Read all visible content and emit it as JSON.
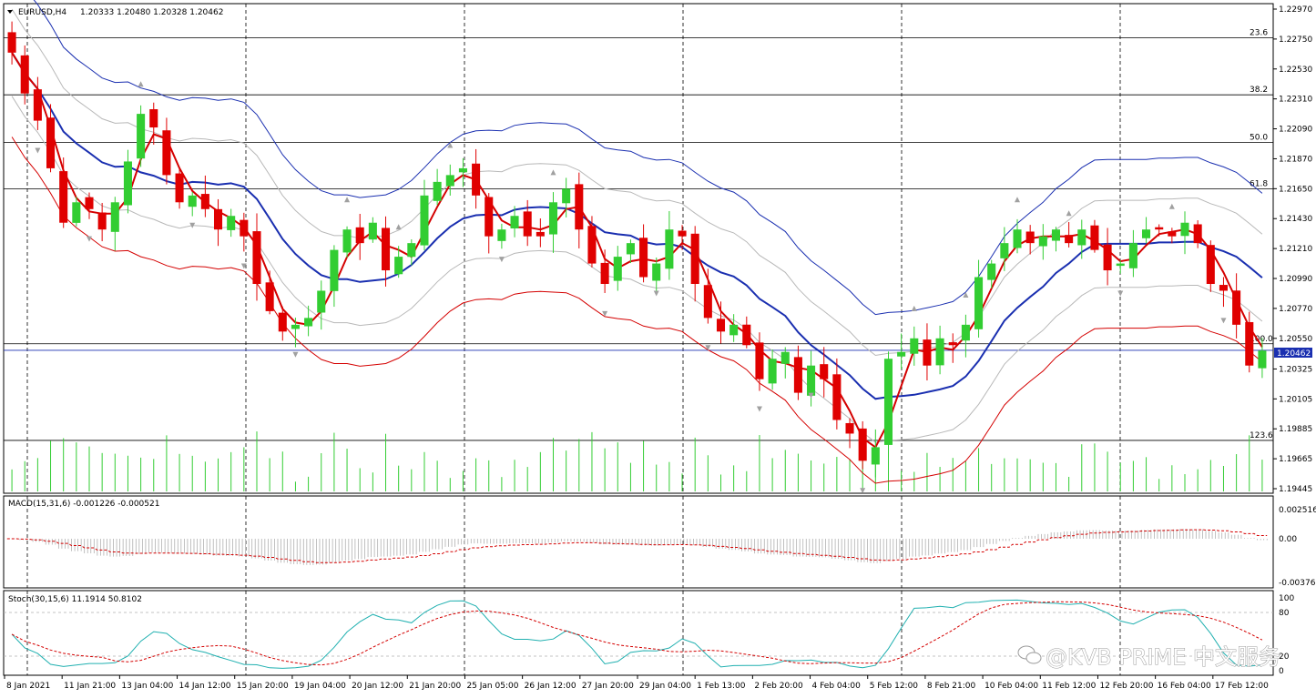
{
  "header": {
    "symbol": "EURUSD,H4",
    "ohlc": "1.20333 1.20480 1.20328 1.20462"
  },
  "macd_header": "MACD(15,31,6) -0.001226 -0.000521",
  "stoch_header": "Stoch(30,15,6) 11.1914 50.8102",
  "current_price": "1.20462",
  "watermark": "@KVB PRIME 中文服务",
  "colors": {
    "bull": "#32cd32",
    "bear": "#e00000",
    "ma_fast": "#d40000",
    "ma_mid": "#1a2fb0",
    "band_outer_up": "#1a2fb0",
    "band_outer_low": "#d40000",
    "band_inner": "#b8b8b8",
    "volume": "#32cd32",
    "fib": "#000000"
  },
  "chart_data": [
    {
      "type": "candlestick",
      "title": "EURUSD,H4",
      "ylim": [
        1.19445,
        1.2297
      ],
      "y_ticks": [
        "1.22970",
        "1.22750",
        "1.22530",
        "1.22310",
        "1.22090",
        "1.21870",
        "1.21650",
        "1.21430",
        "1.21210",
        "1.20990",
        "1.20770",
        "1.20550",
        "1.20325",
        "1.20105",
        "1.19885",
        "1.19665",
        "1.19445"
      ],
      "x_ticks": [
        "8 Jan 2021",
        "11 Jan 21:00",
        "13 Jan 04:00",
        "14 Jan 12:00",
        "15 Jan 20:00",
        "19 Jan 04:00",
        "20 Jan 12:00",
        "21 Jan 20:00",
        "25 Jan 05:00",
        "26 Jan 12:00",
        "27 Jan 20:00",
        "29 Jan 04:00",
        "1 Feb 13:00",
        "2 Feb 20:00",
        "4 Feb 04:00",
        "5 Feb 12:00",
        "8 Feb 21:00",
        "10 Feb 04:00",
        "11 Feb 12:00",
        "12 Feb 20:00",
        "16 Feb 04:00",
        "17 Feb 12:00"
      ],
      "fib_levels": [
        {
          "label": "23.6",
          "price": 1.2276
        },
        {
          "label": "38.2",
          "price": 1.2234
        },
        {
          "label": "50.0",
          "price": 1.2199
        },
        {
          "label": "61.8",
          "price": 1.2165
        },
        {
          "label": "100.0",
          "price": 1.2051
        },
        {
          "label": "123.6",
          "price": 1.198
        }
      ],
      "last_price": 1.20462,
      "close_path": [
        1.2265,
        1.2235,
        1.2215,
        1.218,
        1.214,
        1.2155,
        1.215,
        1.2135,
        1.2155,
        1.2185,
        1.222,
        1.221,
        1.2175,
        1.2155,
        1.216,
        1.215,
        1.2135,
        1.2145,
        1.213,
        1.2095,
        1.2075,
        1.206,
        1.2065,
        1.207,
        1.209,
        1.212,
        1.2135,
        1.2125,
        1.214,
        1.2105,
        1.2115,
        1.2125,
        1.216,
        1.217,
        1.2175,
        1.218,
        1.216,
        1.213,
        1.2135,
        1.2145,
        1.213,
        1.213,
        1.2155,
        1.2165,
        1.2135,
        1.211,
        1.2095,
        1.2115,
        1.2125,
        1.21,
        1.211,
        1.2135,
        1.213,
        1.2095,
        1.207,
        1.206,
        1.2065,
        1.205,
        1.2025,
        1.204,
        1.2045,
        1.2015,
        1.2035,
        1.2025,
        1.1995,
        1.1985,
        1.1965,
        1.1975,
        1.204,
        1.2045,
        1.2055,
        1.2035,
        1.2055,
        1.205,
        1.2065,
        1.21,
        1.211,
        1.2125,
        1.2135,
        1.2125,
        1.213,
        1.2135,
        1.2125,
        1.2135,
        1.212,
        1.2105,
        1.211,
        1.2125,
        1.2135,
        1.2135,
        1.213,
        1.214,
        1.2125,
        1.2095,
        1.209,
        1.2065,
        1.2035,
        1.2046
      ]
    },
    {
      "type": "bar",
      "title": "MACD(15,31,6)",
      "ylim": [
        -0.003769,
        0.002516
      ],
      "y_ticks": [
        "0.002516",
        "0.00",
        "-0.003769"
      ],
      "main": -0.001226,
      "signal": -0.000521
    },
    {
      "type": "line",
      "title": "Stoch(30,15,6)",
      "ylim": [
        0,
        100
      ],
      "y_ticks": [
        "100",
        "80",
        "20",
        "0"
      ],
      "main": 11.1914,
      "signal": 50.8102
    }
  ]
}
